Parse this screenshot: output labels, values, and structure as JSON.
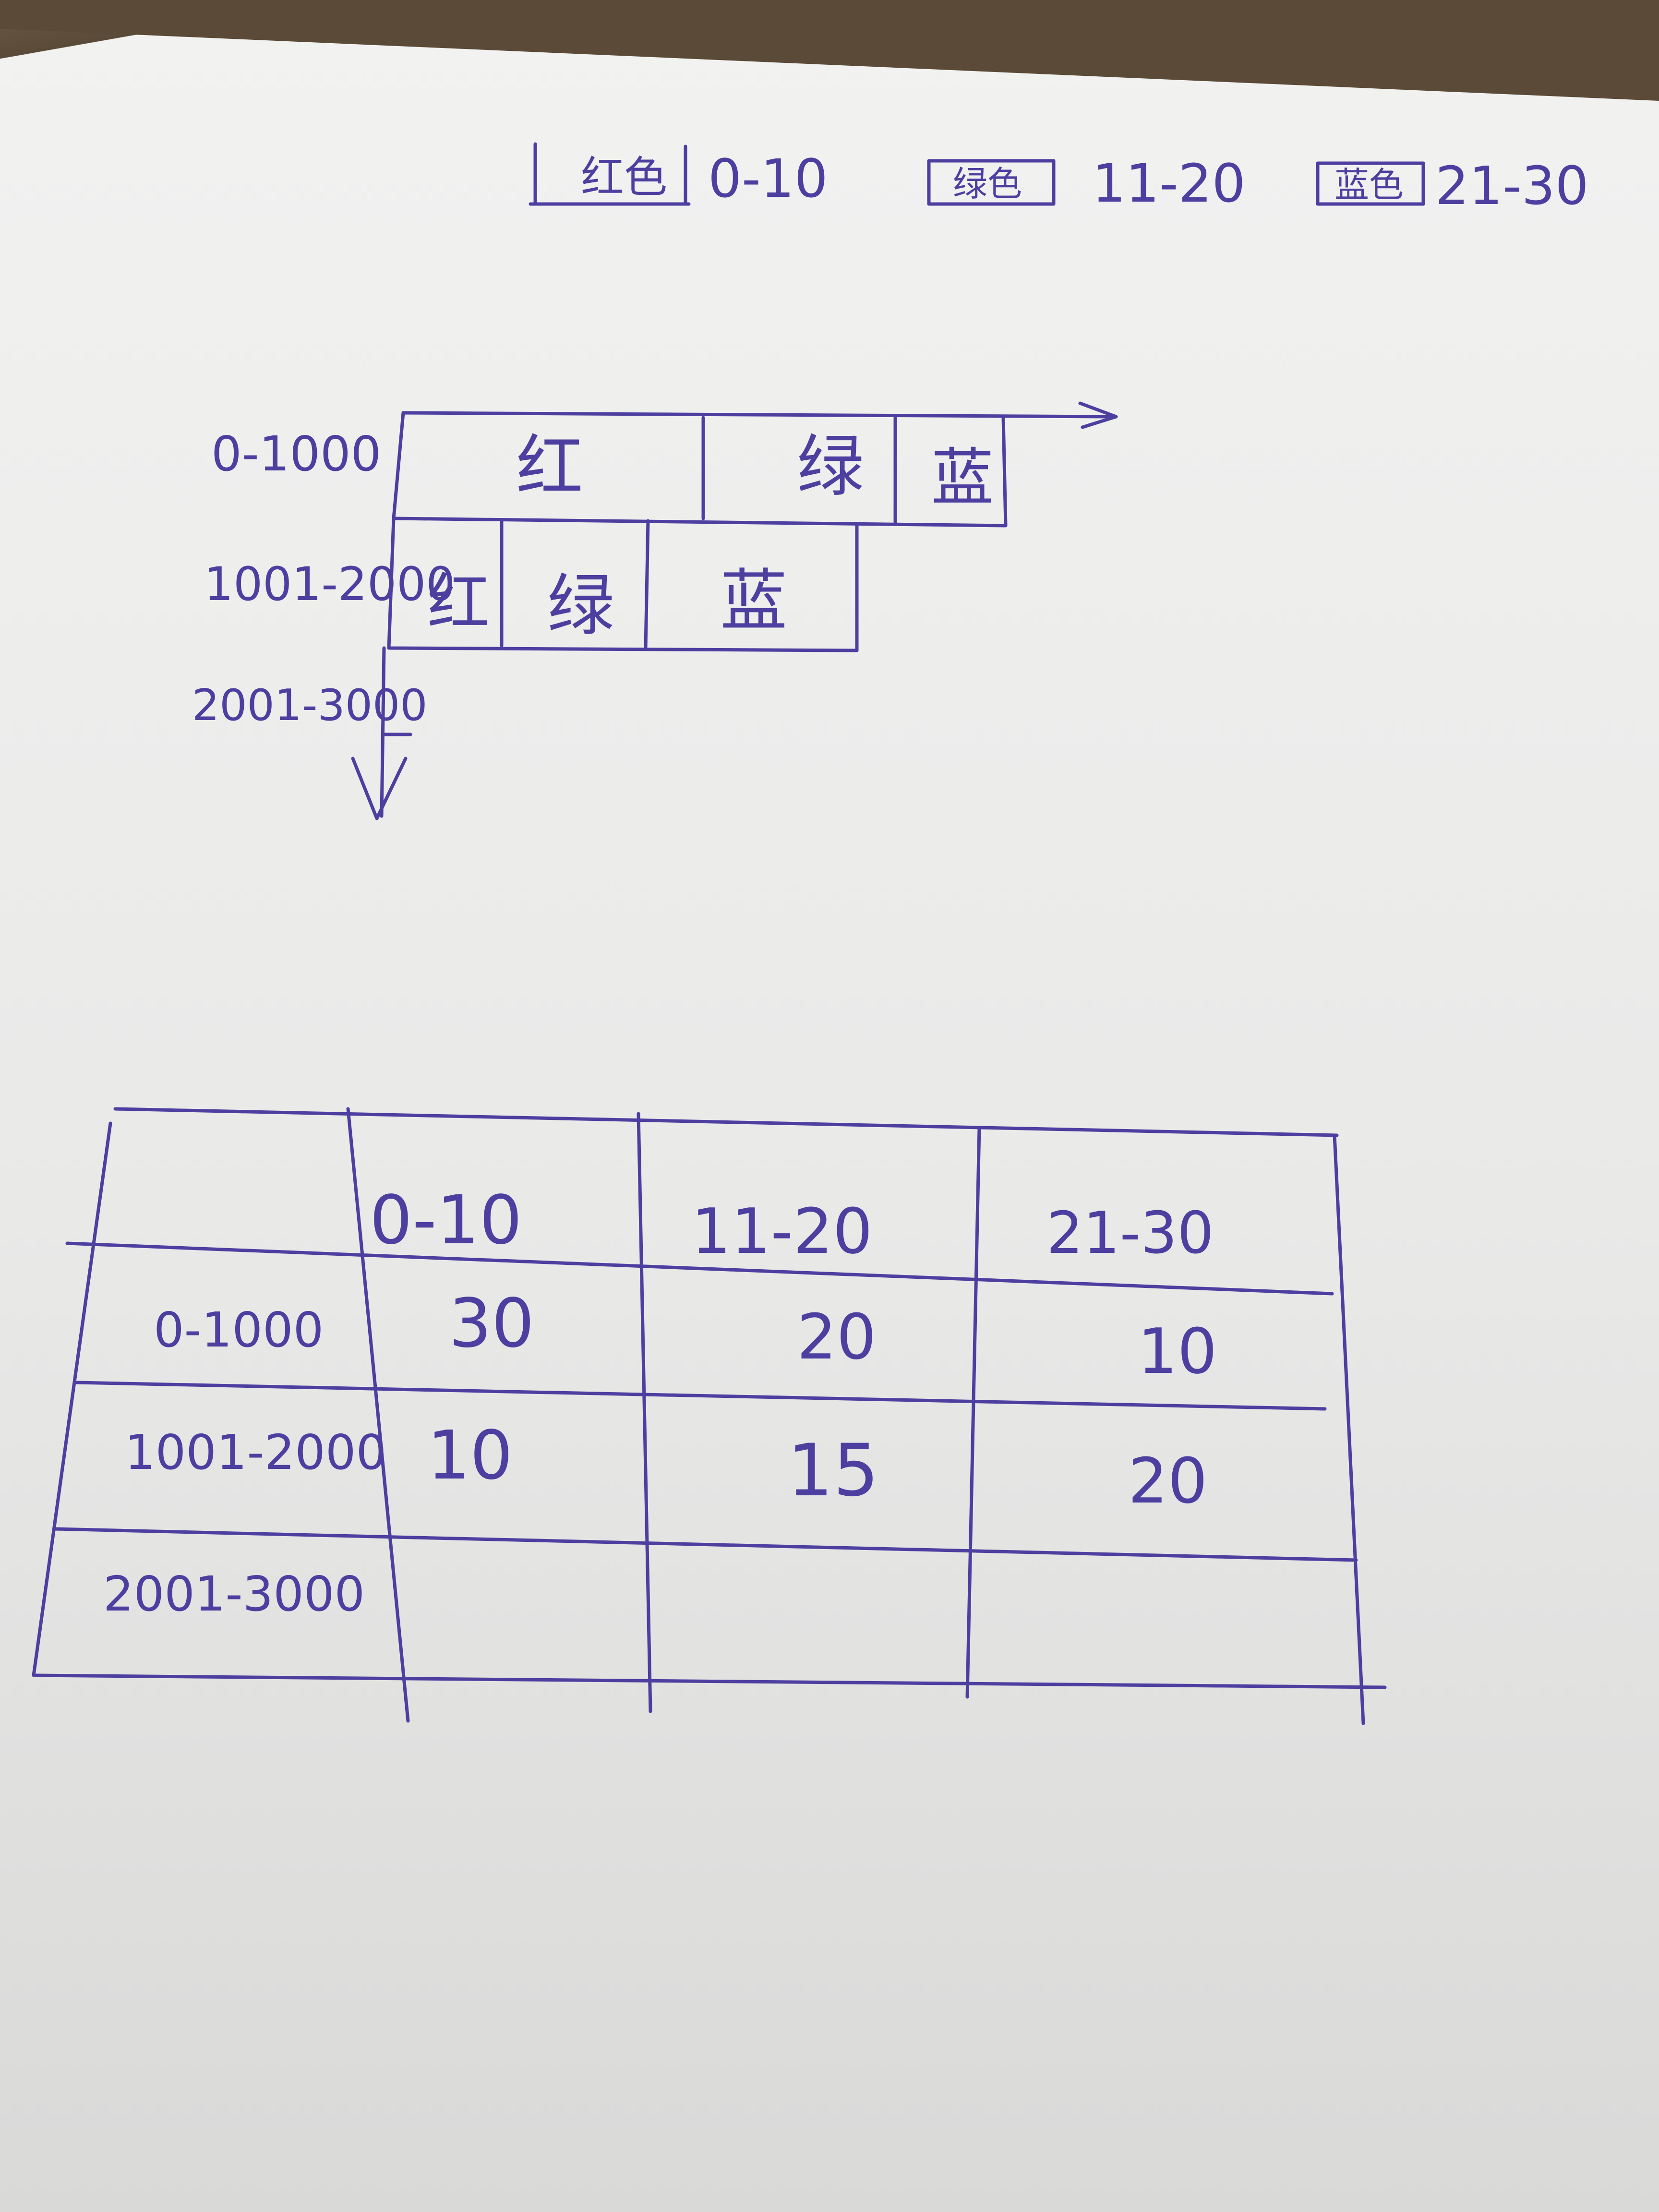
{
  "legend": [
    {
      "color_name": "红色",
      "range": "0-10"
    },
    {
      "color_name": "绿色",
      "range": "11-20"
    },
    {
      "color_name": "蓝色",
      "range": "21-30"
    }
  ],
  "bar_diagram": {
    "rows": [
      {
        "label": "0-1000",
        "segments": [
          "红",
          "绿",
          "蓝"
        ]
      },
      {
        "label": "1001-2000",
        "segments": [
          "红",
          "绿",
          "蓝"
        ]
      },
      {
        "label": "2001-3000",
        "segments": []
      }
    ]
  },
  "table": {
    "header": [
      "",
      "0-10",
      "11-20",
      "21-30"
    ],
    "rows": [
      [
        "0-1000",
        "30",
        "20",
        "10"
      ],
      [
        "1001-2000",
        "10",
        "15",
        "20"
      ],
      [
        "2001-3000",
        "",
        "",
        ""
      ]
    ]
  }
}
